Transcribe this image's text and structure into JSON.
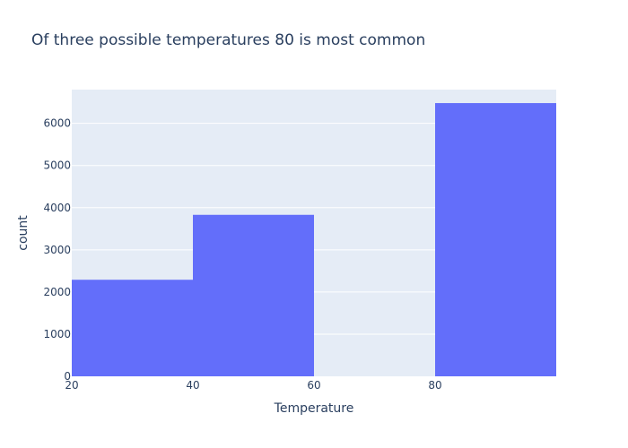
{
  "chart_data": {
    "type": "bar",
    "title": "Of three possible temperatures 80 is most common",
    "xlabel": "Temperature",
    "ylabel": "count",
    "bins": [
      {
        "x0": 20,
        "x1": 40,
        "count": 2290
      },
      {
        "x0": 40,
        "x1": 60,
        "count": 3830
      },
      {
        "x0": 60,
        "x1": 80,
        "count": 0
      },
      {
        "x0": 80,
        "x1": 100,
        "count": 6480
      }
    ],
    "xlim": [
      20,
      100
    ],
    "ylim": [
      0,
      6800
    ],
    "x_ticks": [
      20,
      40,
      60,
      80
    ],
    "y_ticks": [
      0,
      1000,
      2000,
      3000,
      4000,
      5000,
      6000
    ],
    "grid": true,
    "colors": {
      "bar": "#636efa",
      "plot_bg": "#e5ecf6",
      "grid": "#ffffff",
      "text": "#2a3f5f"
    }
  }
}
